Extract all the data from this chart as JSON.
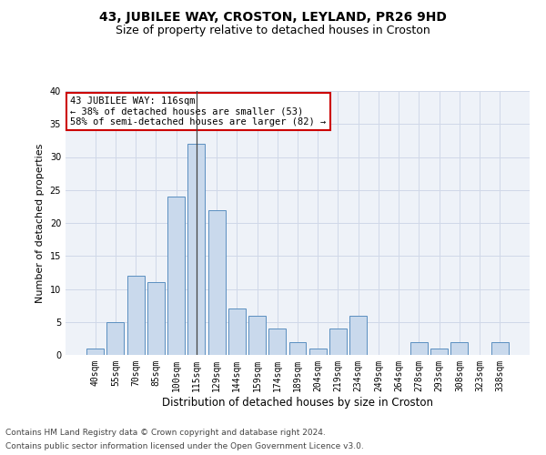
{
  "title": "43, JUBILEE WAY, CROSTON, LEYLAND, PR26 9HD",
  "subtitle": "Size of property relative to detached houses in Croston",
  "xlabel": "Distribution of detached houses by size in Croston",
  "ylabel": "Number of detached properties",
  "categories": [
    "40sqm",
    "55sqm",
    "70sqm",
    "85sqm",
    "100sqm",
    "115sqm",
    "129sqm",
    "144sqm",
    "159sqm",
    "174sqm",
    "189sqm",
    "204sqm",
    "219sqm",
    "234sqm",
    "249sqm",
    "264sqm",
    "278sqm",
    "293sqm",
    "308sqm",
    "323sqm",
    "338sqm"
  ],
  "values": [
    1,
    5,
    12,
    11,
    24,
    32,
    22,
    7,
    6,
    4,
    2,
    1,
    4,
    6,
    0,
    0,
    2,
    1,
    2,
    0,
    2
  ],
  "bar_color": "#c9d9ec",
  "bar_edgecolor": "#5a8fc0",
  "highlight_index": 5,
  "highlight_line_color": "#444444",
  "annotation_text": "43 JUBILEE WAY: 116sqm\n← 38% of detached houses are smaller (53)\n58% of semi-detached houses are larger (82) →",
  "annotation_box_color": "#ffffff",
  "annotation_box_edgecolor": "#cc0000",
  "ylim": [
    0,
    40
  ],
  "yticks": [
    0,
    5,
    10,
    15,
    20,
    25,
    30,
    35,
    40
  ],
  "grid_color": "#d0d8e8",
  "bg_color": "#eef2f8",
  "footer_line1": "Contains HM Land Registry data © Crown copyright and database right 2024.",
  "footer_line2": "Contains public sector information licensed under the Open Government Licence v3.0.",
  "title_fontsize": 10,
  "subtitle_fontsize": 9,
  "xlabel_fontsize": 8.5,
  "ylabel_fontsize": 8,
  "tick_fontsize": 7,
  "annotation_fontsize": 7.5,
  "footer_fontsize": 6.5
}
